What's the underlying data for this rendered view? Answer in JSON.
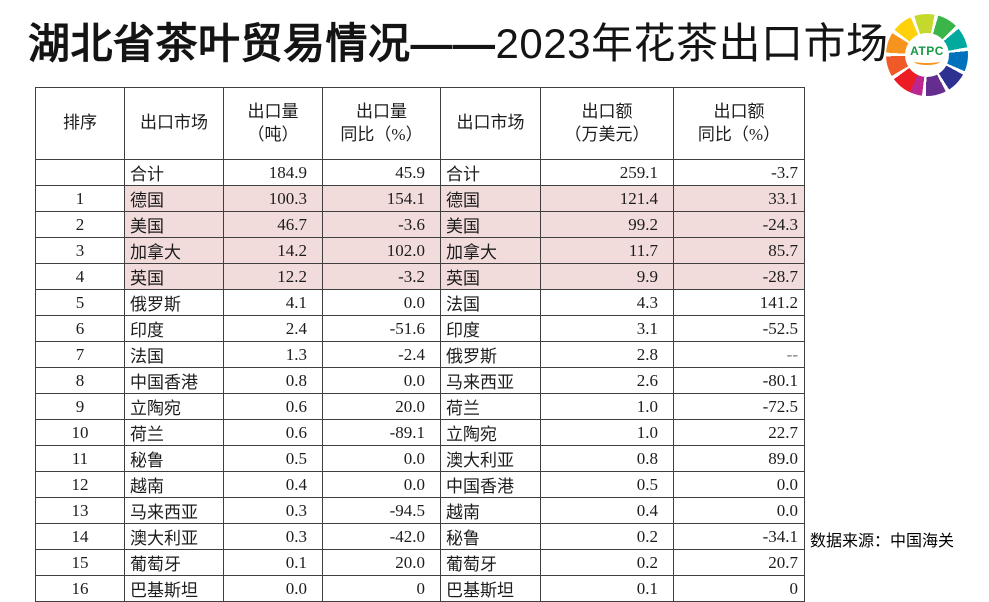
{
  "title": {
    "bold_part": "湖北省茶叶贸易情况——",
    "regular_part": "2023年花茶出口市场"
  },
  "logo": {
    "text": "ATPC"
  },
  "source_note": "数据来源：中国海关",
  "colors": {
    "highlight_pink": "#f2dcdb",
    "table_border": "#3f3f3f",
    "logo_text_green": "#169a44",
    "logo_swoosh_orange": "#f7941d"
  },
  "table": {
    "headers": [
      "排序",
      "出口市场",
      "出口量\n（吨）",
      "出口量\n同比（%）",
      "出口市场",
      "出口额\n（万美元）",
      "出口额\n同比（%）"
    ],
    "rows": [
      {
        "rank": "",
        "market_l": "合计",
        "volume": "184.9",
        "volume_yoy": "45.9",
        "market_r": "合计",
        "value": "259.1",
        "value_yoy": "-3.7",
        "highlight": false
      },
      {
        "rank": "1",
        "market_l": "德国",
        "volume": "100.3",
        "volume_yoy": "154.1",
        "market_r": "德国",
        "value": "121.4",
        "value_yoy": "33.1",
        "highlight": true
      },
      {
        "rank": "2",
        "market_l": "美国",
        "volume": "46.7",
        "volume_yoy": "-3.6",
        "market_r": "美国",
        "value": "99.2",
        "value_yoy": "-24.3",
        "highlight": true
      },
      {
        "rank": "3",
        "market_l": "加拿大",
        "volume": "14.2",
        "volume_yoy": "102.0",
        "market_r": "加拿大",
        "value": "11.7",
        "value_yoy": "85.7",
        "highlight": true
      },
      {
        "rank": "4",
        "market_l": "英国",
        "volume": "12.2",
        "volume_yoy": "-3.2",
        "market_r": "英国",
        "value": "9.9",
        "value_yoy": "-28.7",
        "highlight": true
      },
      {
        "rank": "5",
        "market_l": "俄罗斯",
        "volume": "4.1",
        "volume_yoy": "0.0",
        "market_r": "法国",
        "value": "4.3",
        "value_yoy": "141.2",
        "highlight": false
      },
      {
        "rank": "6",
        "market_l": "印度",
        "volume": "2.4",
        "volume_yoy": "-51.6",
        "market_r": "印度",
        "value": "3.1",
        "value_yoy": "-52.5",
        "highlight": false
      },
      {
        "rank": "7",
        "market_l": "法国",
        "volume": "1.3",
        "volume_yoy": "-2.4",
        "market_r": "俄罗斯",
        "value": "2.8",
        "value_yoy": "--",
        "highlight": false
      },
      {
        "rank": "8",
        "market_l": "中国香港",
        "volume": "0.8",
        "volume_yoy": "0.0",
        "market_r": "马来西亚",
        "value": "2.6",
        "value_yoy": "-80.1",
        "highlight": false
      },
      {
        "rank": "9",
        "market_l": "立陶宛",
        "volume": "0.6",
        "volume_yoy": "20.0",
        "market_r": "荷兰",
        "value": "1.0",
        "value_yoy": "-72.5",
        "highlight": false
      },
      {
        "rank": "10",
        "market_l": "荷兰",
        "volume": "0.6",
        "volume_yoy": "-89.1",
        "market_r": "立陶宛",
        "value": "1.0",
        "value_yoy": "22.7",
        "highlight": false
      },
      {
        "rank": "11",
        "market_l": "秘鲁",
        "volume": "0.5",
        "volume_yoy": "0.0",
        "market_r": "澳大利亚",
        "value": "0.8",
        "value_yoy": "89.0",
        "highlight": false
      },
      {
        "rank": "12",
        "market_l": "越南",
        "volume": "0.4",
        "volume_yoy": "0.0",
        "market_r": "中国香港",
        "value": "0.5",
        "value_yoy": "0.0",
        "highlight": false
      },
      {
        "rank": "13",
        "market_l": "马来西亚",
        "volume": "0.3",
        "volume_yoy": "-94.5",
        "market_r": "越南",
        "value": "0.4",
        "value_yoy": "0.0",
        "highlight": false
      },
      {
        "rank": "14",
        "market_l": "澳大利亚",
        "volume": "0.3",
        "volume_yoy": "-42.0",
        "market_r": "秘鲁",
        "value": "0.2",
        "value_yoy": "-34.1",
        "highlight": false
      },
      {
        "rank": "15",
        "market_l": "葡萄牙",
        "volume": "0.1",
        "volume_yoy": "20.0",
        "market_r": "葡萄牙",
        "value": "0.2",
        "value_yoy": "20.7",
        "highlight": false
      },
      {
        "rank": "16",
        "market_l": "巴基斯坦",
        "volume": "0.0",
        "volume_yoy": "0",
        "market_r": "巴基斯坦",
        "value": "0.1",
        "value_yoy": "0",
        "highlight": false
      }
    ]
  }
}
